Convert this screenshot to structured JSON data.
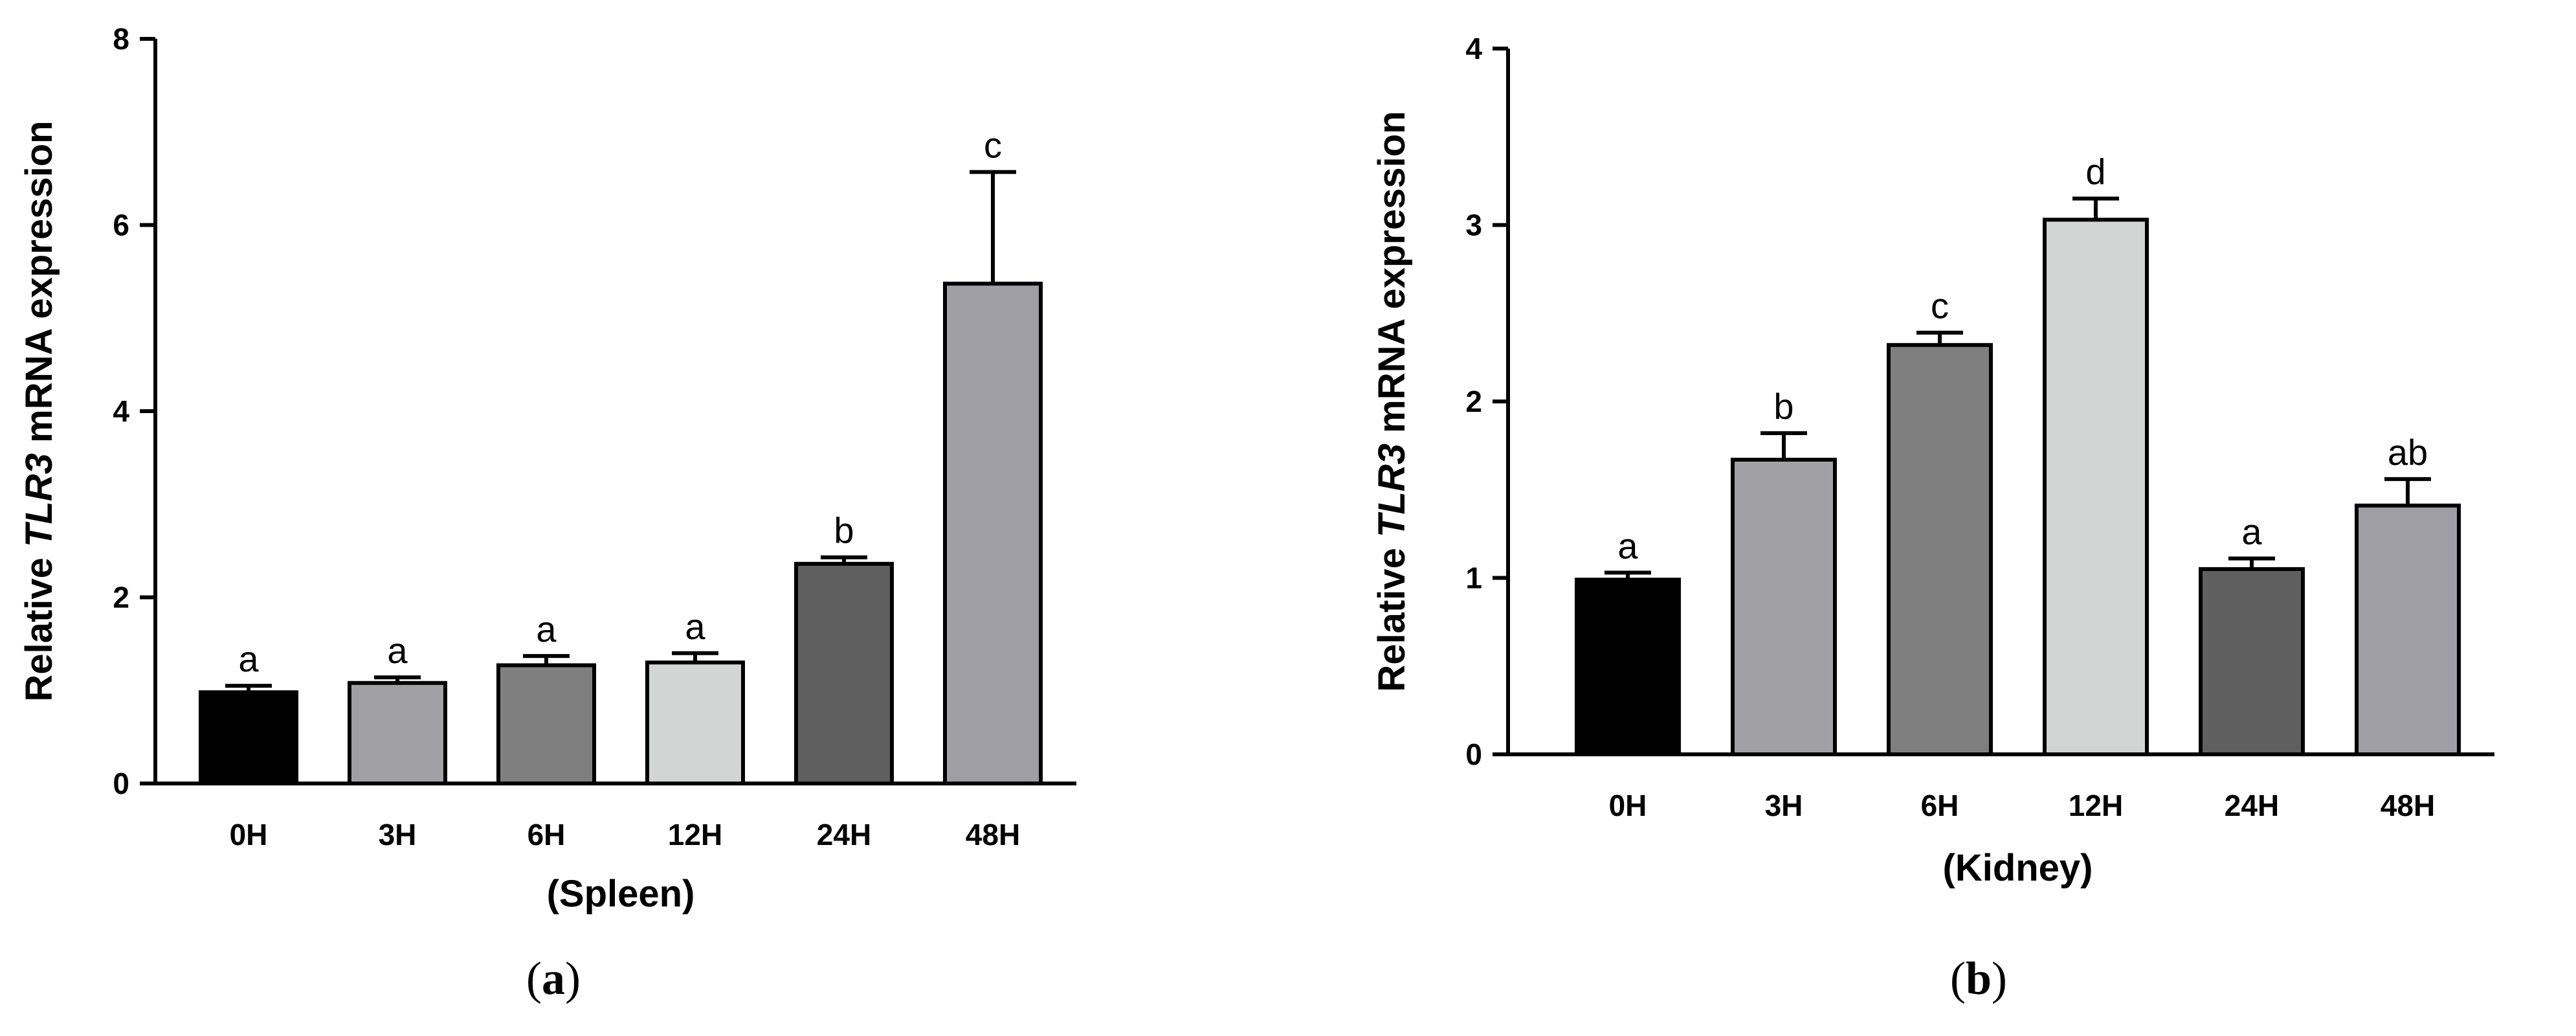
{
  "chart_data": [
    {
      "type": "bar",
      "panel_label": "a",
      "title": "",
      "xlabel": "(Spleen)",
      "ylabel_prefix": "Relative ",
      "ylabel_italic": "TLR3",
      "ylabel_suffix": " mRNA expression",
      "ylim": [
        0,
        8
      ],
      "yticks": [
        0,
        2,
        4,
        6,
        8
      ],
      "categories": [
        "0H",
        "3H",
        "6H",
        "12H",
        "24H",
        "48H"
      ],
      "values": [
        0.98,
        1.08,
        1.27,
        1.3,
        2.36,
        5.37
      ],
      "errors": [
        0.07,
        0.06,
        0.1,
        0.1,
        0.07,
        1.2
      ],
      "significance": [
        "a",
        "a",
        "a",
        "a",
        "b",
        "c"
      ],
      "colors": [
        "#000000",
        "#a0a0a5",
        "#7f7f7f",
        "#d3d5d4",
        "#5f5f5f",
        "#9e9ea4"
      ]
    },
    {
      "type": "bar",
      "panel_label": "b",
      "title": "",
      "xlabel": "(Kidney)",
      "ylabel_prefix": "Relative ",
      "ylabel_italic": "TLR3",
      "ylabel_suffix": " mRNA expression",
      "ylim": [
        0,
        4
      ],
      "yticks": [
        0,
        1,
        2,
        3,
        4
      ],
      "categories": [
        "0H",
        "3H",
        "6H",
        "12H",
        "24H",
        "48H"
      ],
      "values": [
        0.99,
        1.67,
        2.32,
        3.03,
        1.05,
        1.41
      ],
      "errors": [
        0.04,
        0.15,
        0.07,
        0.12,
        0.06,
        0.15
      ],
      "significance": [
        "a",
        "b",
        "c",
        "d",
        "a",
        "ab"
      ],
      "colors": [
        "#000000",
        "#a0a0a5",
        "#7f7f7f",
        "#d3d5d4",
        "#5f5f5f",
        "#9e9ea4"
      ]
    }
  ]
}
